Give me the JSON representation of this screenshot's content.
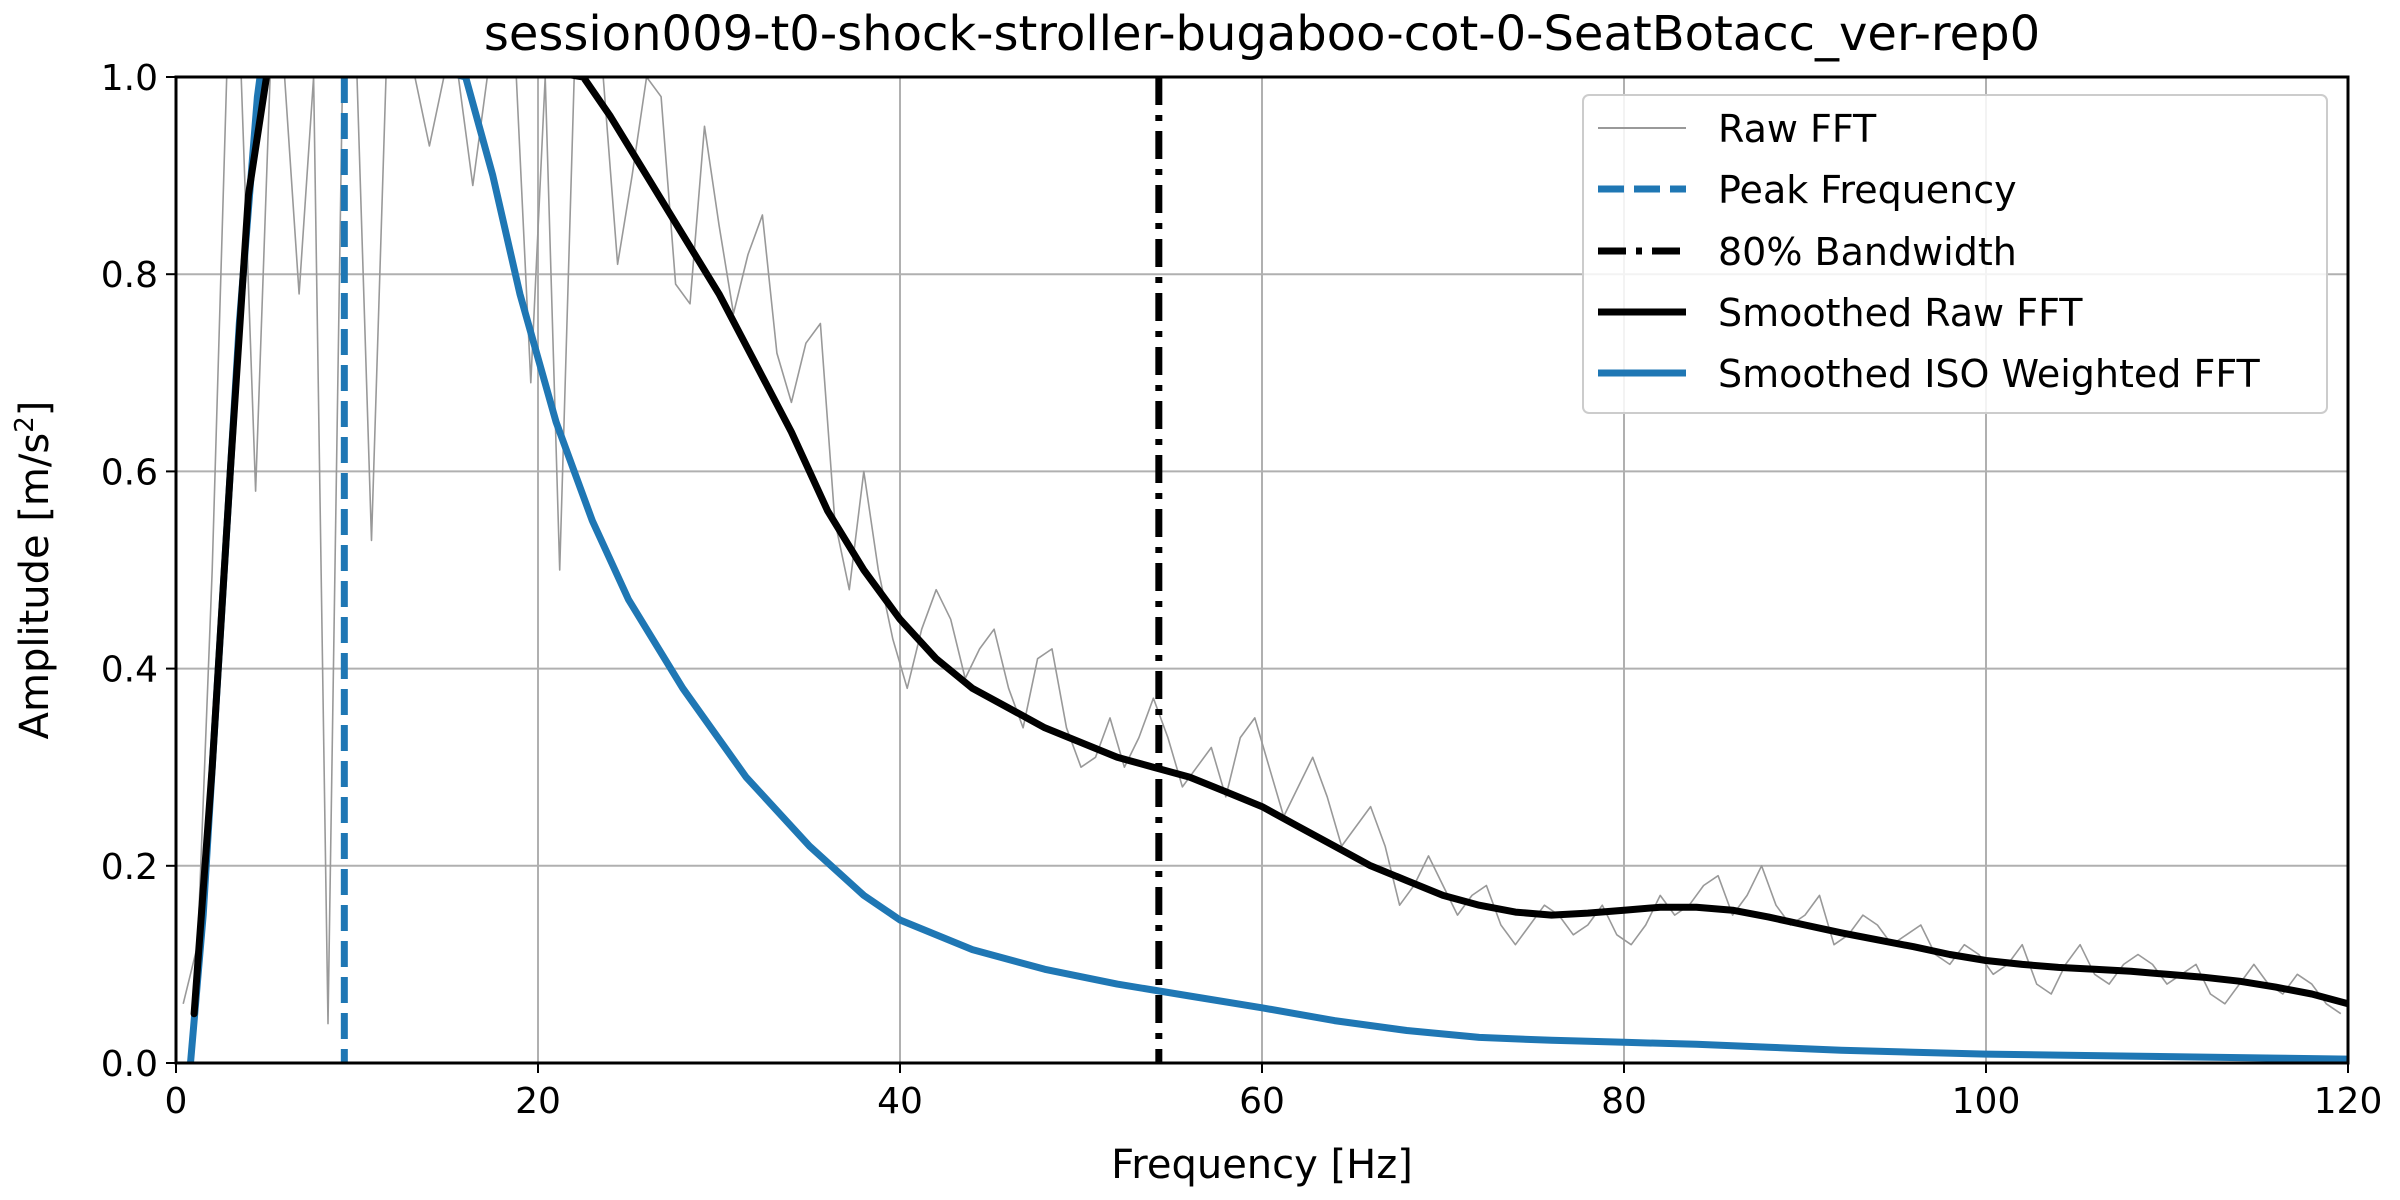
{
  "chart_data": {
    "type": "line",
    "title": "session009-t0-shock-stroller-bugaboo-cot-0-SeatBotacc_ver-rep0",
    "xlabel": "Frequency [Hz]",
    "ylabel": "Amplitude [m/s",
    "ylabel_sup": "2",
    "ylabel_end": "]",
    "xlim": [
      0,
      120
    ],
    "ylim": [
      0,
      1.0
    ],
    "xticks": [
      0,
      20,
      40,
      60,
      80,
      100,
      120
    ],
    "xtick_labels": [
      "0",
      "20",
      "40",
      "60",
      "80",
      "100",
      "120"
    ],
    "yticks": [
      0.0,
      0.2,
      0.4,
      0.6,
      0.8,
      1.0
    ],
    "ytick_labels": [
      "0.0",
      "0.2",
      "0.4",
      "0.6",
      "0.8",
      "1.0"
    ],
    "grid": true,
    "legend_position": "top-right",
    "peak_frequency": 9.3,
    "bandwidth_80": 54.3,
    "series": [
      {
        "name": "Raw FFT",
        "color": "#999999",
        "style": "thin",
        "x": [
          0.4,
          1.2,
          2.0,
          2.8,
          3.6,
          4.4,
          5.2,
          6.0,
          6.8,
          7.6,
          8.4,
          9.2,
          10.0,
          10.8,
          11.6,
          12.4,
          13.2,
          14.0,
          14.8,
          15.6,
          16.4,
          17.2,
          18.0,
          18.8,
          19.6,
          20.4,
          21.2,
          22.0,
          22.8,
          23.6,
          24.4,
          25.2,
          26.0,
          26.8,
          27.6,
          28.4,
          29.2,
          30.0,
          30.8,
          31.6,
          32.4,
          33.2,
          34.0,
          34.8,
          35.6,
          36.4,
          37.2,
          38.0,
          38.8,
          39.6,
          40.4,
          41.2,
          42.0,
          42.8,
          43.6,
          44.4,
          45.2,
          46.0,
          46.8,
          47.6,
          48.4,
          49.2,
          50.0,
          50.8,
          51.6,
          52.4,
          53.2,
          54.0,
          54.8,
          55.6,
          56.4,
          57.2,
          58.0,
          58.8,
          59.6,
          60.4,
          61.2,
          62.0,
          62.8,
          63.6,
          64.4,
          65.2,
          66.0,
          66.8,
          67.6,
          68.4,
          69.2,
          70.0,
          70.8,
          71.6,
          72.4,
          73.2,
          74.0,
          74.8,
          75.6,
          76.4,
          77.2,
          78.0,
          78.8,
          79.6,
          80.4,
          81.2,
          82.0,
          82.8,
          83.6,
          84.4,
          85.2,
          86.0,
          86.8,
          87.6,
          88.4,
          89.2,
          90.0,
          90.8,
          91.6,
          92.4,
          93.2,
          94.0,
          94.8,
          95.6,
          96.4,
          97.2,
          98.0,
          98.8,
          99.6,
          100.4,
          101.2,
          102.0,
          102.8,
          103.6,
          104.4,
          105.2,
          106.0,
          106.8,
          107.6,
          108.4,
          109.2,
          110.0,
          110.8,
          111.6,
          112.4,
          113.2,
          114.0,
          114.8,
          115.6,
          116.4,
          117.2,
          118.0,
          118.8,
          119.6
        ],
        "values": [
          0.06,
          0.12,
          0.5,
          1.0,
          1.0,
          0.58,
          1.0,
          1.0,
          0.78,
          1.0,
          0.04,
          1.0,
          1.0,
          0.53,
          1.0,
          1.0,
          1.0,
          0.93,
          1.0,
          1.0,
          0.89,
          1.0,
          1.0,
          1.0,
          0.69,
          1.0,
          0.5,
          1.0,
          1.0,
          1.0,
          0.81,
          0.9,
          1.0,
          0.98,
          0.79,
          0.77,
          0.95,
          0.85,
          0.76,
          0.82,
          0.86,
          0.72,
          0.67,
          0.73,
          0.75,
          0.55,
          0.48,
          0.6,
          0.5,
          0.43,
          0.38,
          0.44,
          0.48,
          0.45,
          0.39,
          0.42,
          0.44,
          0.38,
          0.34,
          0.41,
          0.42,
          0.34,
          0.3,
          0.31,
          0.35,
          0.3,
          0.33,
          0.37,
          0.33,
          0.28,
          0.3,
          0.32,
          0.27,
          0.33,
          0.35,
          0.3,
          0.25,
          0.28,
          0.31,
          0.27,
          0.22,
          0.24,
          0.26,
          0.22,
          0.16,
          0.18,
          0.21,
          0.18,
          0.15,
          0.17,
          0.18,
          0.14,
          0.12,
          0.14,
          0.16,
          0.15,
          0.13,
          0.14,
          0.16,
          0.13,
          0.12,
          0.14,
          0.17,
          0.15,
          0.16,
          0.18,
          0.19,
          0.15,
          0.17,
          0.2,
          0.16,
          0.14,
          0.15,
          0.17,
          0.12,
          0.13,
          0.15,
          0.14,
          0.12,
          0.13,
          0.14,
          0.11,
          0.1,
          0.12,
          0.11,
          0.09,
          0.1,
          0.12,
          0.08,
          0.07,
          0.1,
          0.12,
          0.09,
          0.08,
          0.1,
          0.11,
          0.1,
          0.08,
          0.09,
          0.1,
          0.07,
          0.06,
          0.08,
          0.1,
          0.08,
          0.07,
          0.09,
          0.08,
          0.06,
          0.05
        ]
      },
      {
        "name": "Peak Frequency",
        "color": "#1f77b4",
        "style": "dashed-vertical"
      },
      {
        "name": "80% Bandwidth",
        "color": "#000000",
        "style": "dashdot-vertical"
      },
      {
        "name": "Smoothed Raw FFT",
        "color": "#000000",
        "style": "thick",
        "x": [
          1.0,
          2.0,
          3.0,
          4.0,
          5.0,
          6.0,
          22.5,
          24.0,
          26.0,
          28.0,
          30.0,
          32.0,
          34.0,
          36.0,
          38.0,
          40.0,
          42.0,
          44.0,
          46.0,
          48.0,
          50.0,
          52.0,
          54.0,
          56.0,
          58.0,
          60.0,
          62.0,
          64.0,
          66.0,
          68.0,
          70.0,
          72.0,
          74.0,
          76.0,
          78.0,
          80.0,
          82.0,
          84.0,
          86.0,
          88.0,
          90.0,
          92.0,
          94.0,
          96.0,
          98.0,
          100.0,
          102.0,
          104.0,
          106.0,
          108.0,
          110.0,
          112.0,
          114.0,
          116.0,
          118.0,
          120.0
        ],
        "values": [
          0.05,
          0.3,
          0.6,
          0.88,
          1.0,
          1.05,
          1.0,
          0.96,
          0.9,
          0.84,
          0.78,
          0.71,
          0.64,
          0.56,
          0.5,
          0.45,
          0.41,
          0.38,
          0.36,
          0.34,
          0.325,
          0.31,
          0.3,
          0.29,
          0.275,
          0.26,
          0.24,
          0.22,
          0.2,
          0.185,
          0.17,
          0.16,
          0.153,
          0.15,
          0.152,
          0.155,
          0.158,
          0.158,
          0.155,
          0.148,
          0.14,
          0.132,
          0.125,
          0.118,
          0.11,
          0.104,
          0.1,
          0.097,
          0.095,
          0.093,
          0.09,
          0.087,
          0.083,
          0.077,
          0.07,
          0.06
        ]
      },
      {
        "name": "Smoothed ISO Weighted FFT",
        "color": "#1f77b4",
        "style": "thick",
        "x": [
          0.8,
          1.5,
          2.5,
          3.5,
          4.5,
          5.0,
          16.0,
          17.5,
          19.0,
          21.0,
          23.0,
          25.0,
          28.0,
          31.5,
          35.0,
          38.0,
          40.0,
          44.0,
          48.0,
          52.0,
          56.0,
          60.0,
          64.0,
          68.0,
          72.0,
          76.0,
          80.0,
          84.0,
          88.0,
          92.0,
          96.0,
          100.0,
          104.0,
          108.0,
          112.0,
          116.0,
          120.0
        ],
        "values": [
          0.0,
          0.15,
          0.45,
          0.75,
          0.98,
          1.05,
          1.0,
          0.9,
          0.78,
          0.65,
          0.55,
          0.47,
          0.38,
          0.29,
          0.22,
          0.17,
          0.145,
          0.115,
          0.095,
          0.08,
          0.068,
          0.056,
          0.043,
          0.033,
          0.026,
          0.023,
          0.021,
          0.019,
          0.016,
          0.013,
          0.011,
          0.009,
          0.008,
          0.007,
          0.006,
          0.005,
          0.004
        ]
      }
    ]
  }
}
